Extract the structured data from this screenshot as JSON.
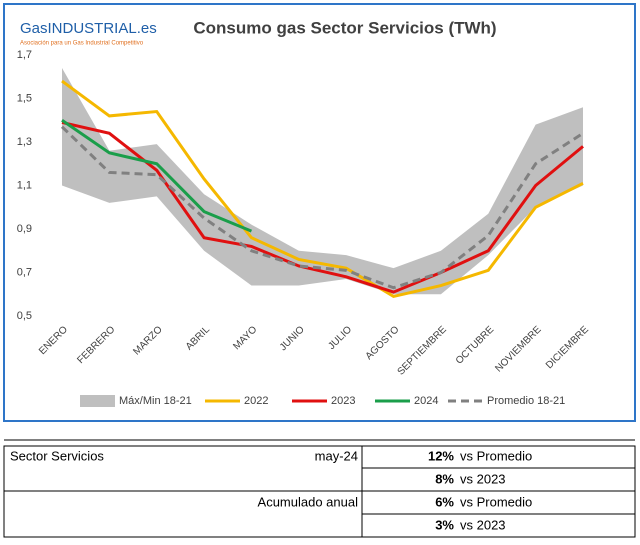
{
  "logo": {
    "brand": "GasINDUSTRIAL.es",
    "tagline": "Asociación para un Gas Industrial Competitivo"
  },
  "chart_data": {
    "type": "line",
    "title": "Consumo gas Sector Servicios (TWh)",
    "categories": [
      "ENERO",
      "FEBRERO",
      "MARZO",
      "ABRIL",
      "MAYO",
      "JUNIO",
      "JULIO",
      "AGOSTO",
      "SEPTIEMBRE",
      "OCTUBRE",
      "NOVIEMBRE",
      "DICIEMBRE"
    ],
    "ylim": [
      0.5,
      1.7
    ],
    "yticks": [
      {
        "value": 0.5,
        "label": "0,5"
      },
      {
        "value": 0.7,
        "label": "0,7"
      },
      {
        "value": 0.9,
        "label": "0,9"
      },
      {
        "value": 1.1,
        "label": "1,1"
      },
      {
        "value": 1.3,
        "label": "1,3"
      },
      {
        "value": 1.5,
        "label": "1,5"
      },
      {
        "value": 1.7,
        "label": "1,7"
      }
    ],
    "grid": false,
    "series": [
      {
        "name": "Máx/Min 18-21",
        "color": "#bfbfbf",
        "kind": "band",
        "values": [
          1.64,
          1.26,
          1.29,
          1.06,
          0.92,
          0.8,
          0.78,
          0.72,
          0.8,
          0.97,
          1.38,
          1.46
        ],
        "lower": [
          1.1,
          1.02,
          1.05,
          0.8,
          0.64,
          0.64,
          0.67,
          0.6,
          0.6,
          0.78,
          1.0,
          1.1
        ]
      },
      {
        "name": "2022",
        "color": "#f5b800",
        "values": [
          1.58,
          1.42,
          1.44,
          1.13,
          0.86,
          0.76,
          0.72,
          0.59,
          0.64,
          0.71,
          1.0,
          1.11
        ]
      },
      {
        "name": "2023",
        "color": "#e01010",
        "values": [
          1.39,
          1.34,
          1.17,
          0.86,
          0.82,
          0.73,
          0.68,
          0.61,
          0.7,
          0.8,
          1.1,
          1.28
        ]
      },
      {
        "name": "2024",
        "color": "#1a9e4a",
        "values": [
          1.4,
          1.25,
          1.2,
          0.98,
          0.89,
          null,
          null,
          null,
          null,
          null,
          null,
          null
        ]
      },
      {
        "name": "Promedio 18-21",
        "color": "#808080",
        "dash": true,
        "values": [
          1.37,
          1.16,
          1.15,
          0.95,
          0.8,
          0.73,
          0.71,
          0.63,
          0.7,
          0.87,
          1.2,
          1.34
        ]
      }
    ]
  },
  "table": {
    "rows": [
      {
        "label": "Sector Servicios",
        "period": "may-24",
        "items": [
          {
            "pct": "12%",
            "text": "vs Promedio"
          },
          {
            "pct": "8%",
            "text": "vs 2023"
          }
        ]
      },
      {
        "label": "Acumulado anual",
        "items": [
          {
            "pct": "6%",
            "text": "vs Promedio"
          },
          {
            "pct": "3%",
            "text": "vs 2023"
          }
        ]
      }
    ]
  }
}
